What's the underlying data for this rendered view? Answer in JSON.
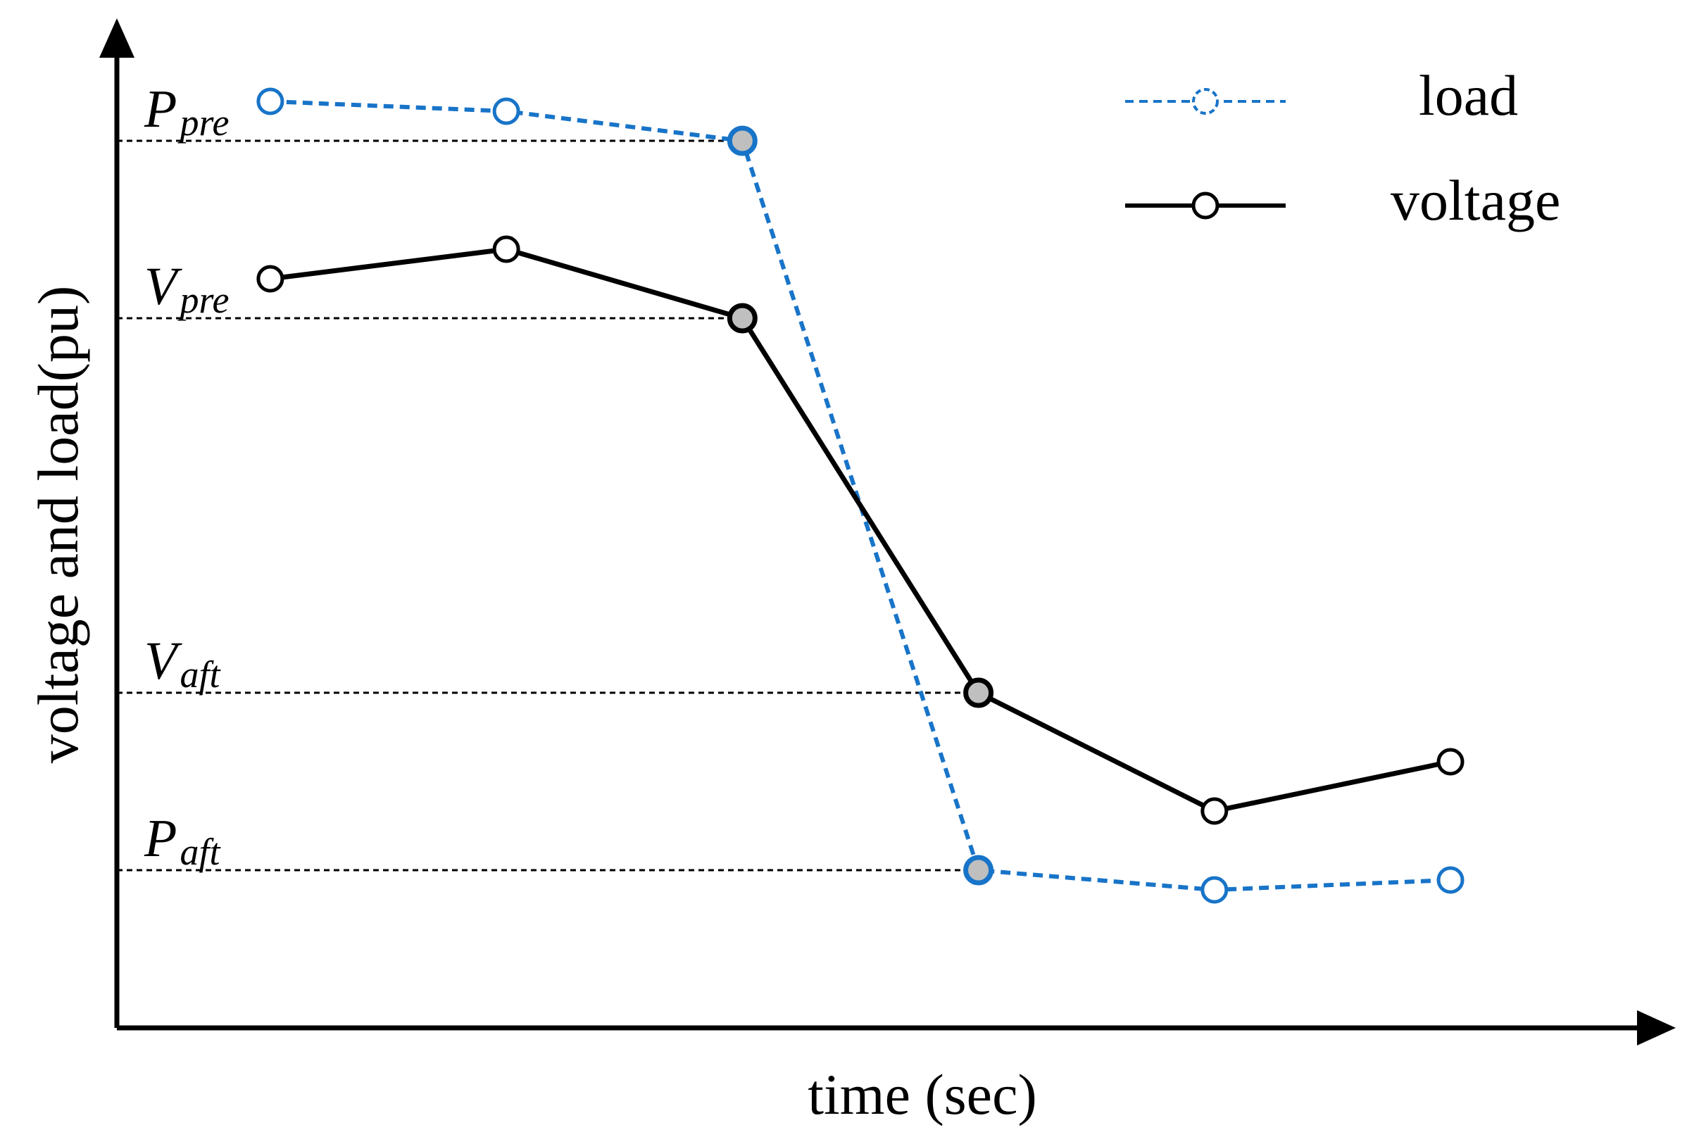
{
  "chart_data": {
    "type": "line",
    "title": "",
    "xlabel": "time (sec)",
    "ylabel": "voltage and load(pu)",
    "x": [
      1,
      2,
      3,
      4,
      5,
      6
    ],
    "xlim": [
      0.35,
      6.85
    ],
    "ylim": [
      0,
      1.0
    ],
    "grid": false,
    "legend_position": "top-right",
    "series": [
      {
        "name": "load",
        "style": "dashed",
        "color": "#1874c8",
        "values": [
          0.94,
          0.93,
          0.9,
          0.16,
          0.14,
          0.15
        ],
        "highlighted_points": [
          3,
          4
        ]
      },
      {
        "name": "voltage",
        "style": "solid",
        "color": "#000000",
        "values": [
          0.76,
          0.79,
          0.72,
          0.34,
          0.22,
          0.27
        ],
        "highlighted_points": [
          3,
          4
        ]
      }
    ],
    "reference_lines": [
      {
        "main": "P",
        "sub": "pre",
        "value": 0.9
      },
      {
        "main": "V",
        "sub": "pre",
        "value": 0.72
      },
      {
        "main": "V",
        "sub": "aft",
        "value": 0.34
      },
      {
        "main": "P",
        "sub": "aft",
        "value": 0.16
      }
    ]
  }
}
